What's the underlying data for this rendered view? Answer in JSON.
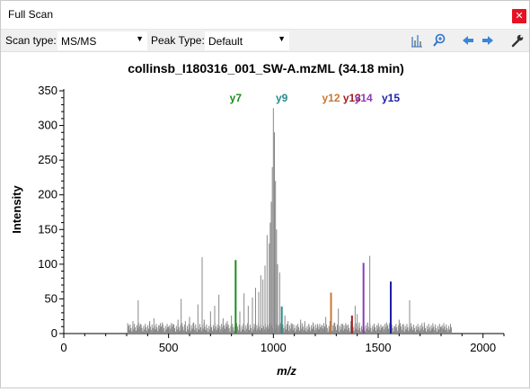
{
  "window": {
    "title": "Full Scan",
    "close_glyph": "✕"
  },
  "toolbar": {
    "scan_type_label": "Scan type:",
    "scan_type_value": "MS/MS",
    "peak_type_label": "Peak Type:",
    "peak_type_value": "Default",
    "icons": [
      "spectrum-bars-icon",
      "zoom-in-icon",
      "back-arrow-icon",
      "forward-arrow-icon",
      "wrench-icon"
    ],
    "accent_color": "#2a72c8"
  },
  "chart_data": {
    "type": "bar",
    "title": "collinsb_I180316_001_SW-A.mzML  (34.18 min)",
    "xlabel": "m/z",
    "ylabel": "Intensity",
    "xlim": [
      0,
      2100
    ],
    "ylim": [
      0,
      350
    ],
    "xticks": [
      0,
      500,
      1000,
      1500,
      2000
    ],
    "yticks": [
      0,
      50,
      100,
      150,
      200,
      250,
      300,
      350
    ],
    "background_peaks": {
      "color": "#888888",
      "x": [
        310,
        330,
        355,
        365,
        390,
        410,
        430,
        455,
        470,
        500,
        520,
        545,
        560,
        580,
        600,
        620,
        640,
        660,
        670,
        700,
        720,
        740,
        760,
        780,
        800,
        840,
        860,
        880,
        900,
        915,
        930,
        940,
        950,
        960,
        970,
        980,
        985,
        990,
        995,
        1000,
        1005,
        1010,
        1015,
        1020,
        1030,
        1040,
        1055,
        1070,
        1090,
        1110,
        1130,
        1150,
        1170,
        1190,
        1210,
        1230,
        1250,
        1270,
        1290,
        1310,
        1330,
        1350,
        1370,
        1390,
        1400,
        1410,
        1430,
        1450,
        1460,
        1480,
        1500,
        1520,
        1540,
        1560,
        1580,
        1600,
        1620,
        1650,
        1670,
        1690,
        1720,
        1760,
        1800,
        1830
      ],
      "values": [
        12,
        18,
        48,
        14,
        10,
        18,
        22,
        12,
        16,
        10,
        14,
        20,
        50,
        18,
        24,
        16,
        42,
        110,
        20,
        32,
        40,
        56,
        22,
        18,
        26,
        32,
        58,
        40,
        52,
        66,
        60,
        84,
        78,
        98,
        142,
        130,
        160,
        190,
        240,
        325,
        290,
        220,
        150,
        100,
        88,
        36,
        26,
        18,
        14,
        12,
        20,
        18,
        12,
        16,
        14,
        12,
        24,
        18,
        16,
        36,
        14,
        12,
        18,
        40,
        28,
        16,
        20,
        16,
        112,
        14,
        12,
        10,
        16,
        12,
        10,
        20,
        14,
        48,
        8,
        10,
        16,
        8,
        10,
        6
      ]
    },
    "annotated_peaks": [
      {
        "label": "y7",
        "x": 820,
        "value": 106,
        "color": "#1e8c1e"
      },
      {
        "label": "y9",
        "x": 1040,
        "value": 39,
        "color": "#2a8c8c"
      },
      {
        "label": "y12",
        "x": 1275,
        "value": 59,
        "color": "#c87832"
      },
      {
        "label": "y13",
        "x": 1375,
        "value": 26,
        "color": "#a01e1e"
      },
      {
        "label": "y14",
        "x": 1430,
        "value": 102,
        "color": "#8c3cb4"
      },
      {
        "label": "y15",
        "x": 1560,
        "value": 75,
        "color": "#1e1eaa"
      }
    ],
    "legend": "none",
    "grid": false
  }
}
